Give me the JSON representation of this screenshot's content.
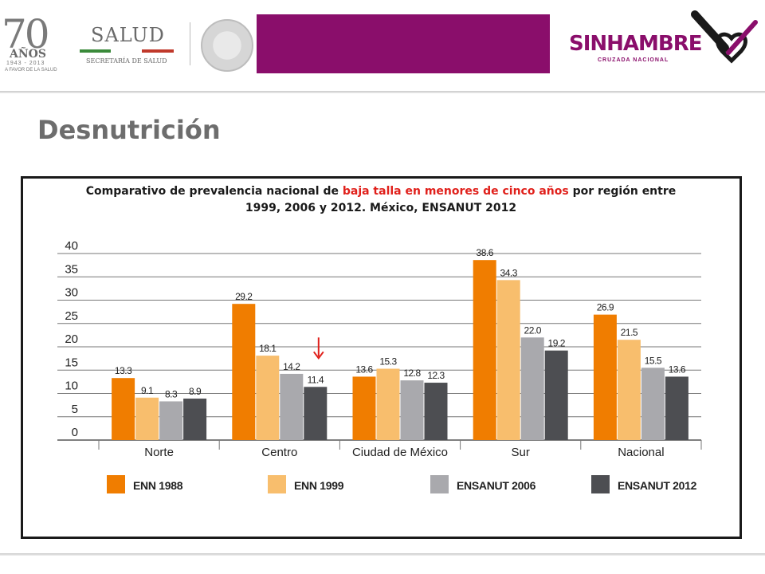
{
  "header": {
    "logo_70": {
      "number": "70",
      "anos": "AÑOS",
      "years": "1943 - 2013",
      "tagline": "A FAVOR DE LA SALUD"
    },
    "salud_logo": {
      "title": "SALUD",
      "subtitle": "SECRETARÍA DE SALUD"
    },
    "sinhambre_logo": {
      "sin": "SIN",
      "hambre": "HAMBRE",
      "subtitle": "CRUZADA NACIONAL"
    },
    "brand_color": "#8a0e6b"
  },
  "slide": {
    "title": "Desnutrición"
  },
  "chart_title": {
    "part1": "Comparativo de prevalencia nacional de ",
    "highlight": "baja talla en menores de cinco años",
    "part2": " por región entre 1999, 2006 y 2012. México, ENSANUT 2012",
    "highlight_color": "#e0201b"
  },
  "chart_data": {
    "type": "bar",
    "categories": [
      "Norte",
      "Centro",
      "Ciudad de México",
      "Sur",
      "Nacional"
    ],
    "series": [
      {
        "name": "ENN 1988",
        "color": "#f07d00",
        "values": [
          13.3,
          29.2,
          13.6,
          38.6,
          26.9
        ]
      },
      {
        "name": "ENN 1999",
        "color": "#f8be6d",
        "values": [
          9.1,
          18.1,
          15.3,
          34.3,
          21.5
        ]
      },
      {
        "name": "ENSANUT 2006",
        "color": "#a9a9ad",
        "values": [
          8.3,
          14.2,
          12.8,
          22.0,
          15.5
        ]
      },
      {
        "name": "ENSANUT 2012",
        "color": "#4d4e52",
        "values": [
          8.9,
          11.4,
          12.3,
          19.2,
          13.6
        ]
      }
    ],
    "data_labels": [
      [
        "13.3",
        "29.2",
        "13.6",
        "38.6",
        "26.9"
      ],
      [
        "9.1",
        "18.1",
        "15.3",
        "34.3",
        "21.5"
      ],
      [
        "8.3",
        "14.2",
        "12.8",
        "22.0",
        "15.5"
      ],
      [
        "8.9",
        "11.4",
        "12.3",
        "19.2",
        "13.6"
      ]
    ],
    "yticks": [
      "0",
      "5",
      "10",
      "15",
      "20",
      "25",
      "30",
      "35",
      "40"
    ],
    "ylim": [
      0,
      40
    ],
    "grid": true,
    "legend_position": "bottom",
    "annotation": {
      "type": "arrow",
      "category": "Centro",
      "series": "ENSANUT 2012",
      "color": "#e0201b"
    }
  }
}
